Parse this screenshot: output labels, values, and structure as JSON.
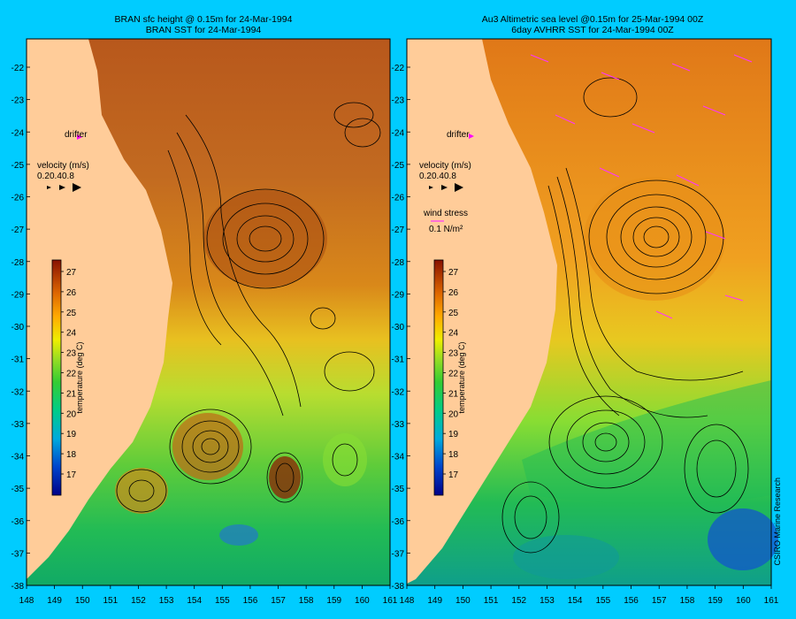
{
  "panels": [
    {
      "title_line1": "BRAN sfc height @ 0.15m for 24-Mar-1994",
      "title_line2": "BRAN SST for 24-Mar-1994",
      "drifter_label": "drifter",
      "velocity_title": "velocity (m/s)",
      "velocity_values": [
        "0.2",
        "0.4",
        "0.8"
      ],
      "wind_title": "",
      "wind_value": ""
    },
    {
      "title_line1": "Au3 Altimetric sea level  @0.15m  for 25-Mar-1994 00Z",
      "title_line2": "6day AVHRR SST for 24-Mar-1994 00Z",
      "drifter_label": "drifter",
      "velocity_title": "velocity (m/s)",
      "velocity_values": [
        "0.2",
        "0.4",
        "0.8"
      ],
      "wind_title": "wind stress",
      "wind_value": "0.1 N/m²"
    }
  ],
  "colorbar": {
    "label": "temperature (deg C)",
    "ticks": [
      "17",
      "18",
      "19",
      "20",
      "21",
      "22",
      "23",
      "24",
      "25",
      "26",
      "27"
    ]
  },
  "map": {
    "lon_ticks": [
      "148",
      "149",
      "150",
      "151",
      "152",
      "153",
      "154",
      "155",
      "156",
      "157",
      "158",
      "159",
      "160",
      "161"
    ],
    "lat_ticks": [
      "-22",
      "-23",
      "-24",
      "-25",
      "-26",
      "-27",
      "-28",
      "-29",
      "-30",
      "-31",
      "-32",
      "-33",
      "-34",
      "-35",
      "-36",
      "-37",
      "-38"
    ]
  },
  "credit": "CSIRO Marine Research",
  "colors": {
    "background": "#00ccff",
    "land": "#ffcc99",
    "drifter": "#ff00ff",
    "wind_arrow": "#ff33ff"
  }
}
